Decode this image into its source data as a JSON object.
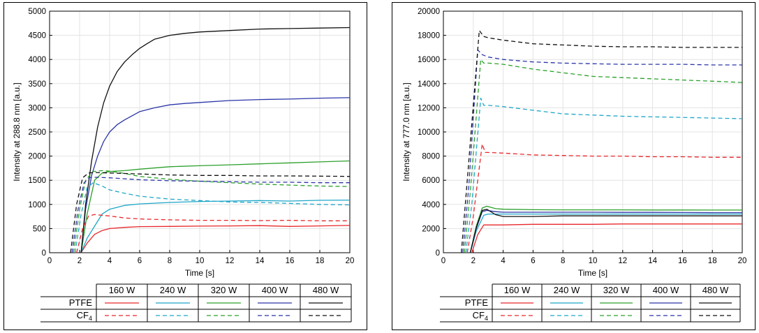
{
  "chart_data": [
    {
      "type": "line",
      "xlabel": "Time [s]",
      "ylabel": "Intensity at 288.8 nm [a.u.]",
      "xlim": [
        0,
        20
      ],
      "ylim": [
        0,
        5000
      ],
      "xticks": [
        0,
        2,
        4,
        6,
        8,
        10,
        12,
        14,
        16,
        18,
        20
      ],
      "yticks": [
        0,
        500,
        1000,
        1500,
        2000,
        2500,
        3000,
        3500,
        4000,
        4500,
        5000
      ],
      "grid": true,
      "legend": {
        "columns": [
          "160 W",
          "240 W",
          "320 W",
          "400 W",
          "480 W"
        ],
        "rows": [
          {
            "label": "PTFE",
            "sub": "",
            "style": "solid"
          },
          {
            "label": "CF",
            "sub": "4",
            "style": "dashed"
          }
        ]
      },
      "series": [
        {
          "power": "160 W",
          "material": "PTFE",
          "color": "#e8282c",
          "dash": false,
          "x": [
            2.1,
            2.5,
            3,
            3.5,
            4,
            5,
            6,
            8,
            10,
            12,
            14,
            16,
            18,
            20
          ],
          "y": [
            0,
            200,
            380,
            460,
            500,
            525,
            540,
            545,
            550,
            555,
            560,
            545,
            555,
            565
          ]
        },
        {
          "power": "240 W",
          "material": "PTFE",
          "color": "#1fa6c8",
          "dash": false,
          "x": [
            2.1,
            2.5,
            3,
            3.5,
            4,
            5,
            6,
            8,
            10,
            12,
            14,
            16,
            18,
            20
          ],
          "y": [
            0,
            300,
            550,
            800,
            900,
            980,
            1010,
            1040,
            1060,
            1070,
            1080,
            1070,
            1085,
            1090
          ]
        },
        {
          "power": "320 W",
          "material": "PTFE",
          "color": "#2ca02c",
          "dash": false,
          "x": [
            2.1,
            2.5,
            3,
            3.5,
            4,
            5,
            6,
            8,
            10,
            12,
            14,
            16,
            18,
            20
          ],
          "y": [
            0,
            800,
            1500,
            1650,
            1680,
            1700,
            1730,
            1780,
            1800,
            1820,
            1840,
            1860,
            1880,
            1900
          ]
        },
        {
          "power": "400 W",
          "material": "PTFE",
          "color": "#2b35a8",
          "dash": false,
          "x": [
            2.1,
            2.4,
            2.8,
            3.2,
            3.6,
            4,
            4.5,
            5,
            6,
            7,
            8,
            9,
            10,
            12,
            14,
            16,
            18,
            20
          ],
          "y": [
            0,
            900,
            1600,
            2000,
            2300,
            2500,
            2650,
            2750,
            2920,
            3000,
            3060,
            3090,
            3110,
            3150,
            3170,
            3180,
            3200,
            3210
          ]
        },
        {
          "power": "480 W",
          "material": "PTFE",
          "color": "#111111",
          "dash": false,
          "x": [
            2.1,
            2.4,
            2.8,
            3.2,
            3.6,
            4,
            4.5,
            5,
            5.5,
            6,
            6.5,
            7,
            8,
            9,
            10,
            12,
            14,
            16,
            18,
            20
          ],
          "y": [
            0,
            1000,
            1900,
            2600,
            3100,
            3450,
            3750,
            3950,
            4100,
            4230,
            4330,
            4420,
            4500,
            4540,
            4570,
            4600,
            4630,
            4640,
            4650,
            4660
          ]
        },
        {
          "power": "160 W",
          "material": "CF4",
          "color": "#e8282c",
          "dash": true,
          "x": [
            1.8,
            2.2,
            2.6,
            3,
            4,
            5,
            6,
            8,
            10,
            12,
            14,
            16,
            18,
            20
          ],
          "y": [
            0,
            500,
            760,
            790,
            760,
            720,
            700,
            680,
            670,
            670,
            665,
            670,
            660,
            660
          ]
        },
        {
          "power": "240 W",
          "material": "CF4",
          "color": "#1fa6c8",
          "dash": true,
          "x": [
            1.7,
            2.1,
            2.5,
            2.9,
            3.5,
            4,
            5,
            6,
            8,
            10,
            12,
            14,
            16,
            18,
            20
          ],
          "y": [
            0,
            800,
            1350,
            1450,
            1380,
            1300,
            1230,
            1170,
            1110,
            1080,
            1050,
            1040,
            1020,
            1000,
            990
          ]
        },
        {
          "power": "320 W",
          "material": "CF4",
          "color": "#2ca02c",
          "dash": true,
          "x": [
            1.6,
            2,
            2.4,
            2.9,
            3.5,
            4,
            5,
            6,
            8,
            10,
            12,
            14,
            16,
            18,
            20
          ],
          "y": [
            0,
            900,
            1500,
            1680,
            1700,
            1690,
            1640,
            1580,
            1520,
            1480,
            1450,
            1420,
            1400,
            1380,
            1370
          ]
        },
        {
          "power": "400 W",
          "material": "CF4",
          "color": "#2b35a8",
          "dash": true,
          "x": [
            1.5,
            1.9,
            2.3,
            2.7,
            3.2,
            4,
            5,
            6,
            8,
            10,
            12,
            14,
            16,
            18,
            20
          ],
          "y": [
            0,
            900,
            1450,
            1560,
            1560,
            1550,
            1530,
            1510,
            1490,
            1480,
            1470,
            1460,
            1460,
            1450,
            1450
          ]
        },
        {
          "power": "480 W",
          "material": "CF4",
          "color": "#111111",
          "dash": true,
          "x": [
            1.4,
            1.8,
            2.2,
            2.6,
            3,
            4,
            5,
            6,
            8,
            10,
            12,
            14,
            16,
            18,
            20
          ],
          "y": [
            0,
            1000,
            1550,
            1650,
            1660,
            1650,
            1640,
            1630,
            1610,
            1600,
            1600,
            1590,
            1590,
            1585,
            1580
          ]
        }
      ]
    },
    {
      "type": "line",
      "xlabel": "Time [s]",
      "ylabel": "Intensity at 777.0 nm [a.u.]",
      "xlim": [
        0,
        20
      ],
      "ylim": [
        0,
        20000
      ],
      "xticks": [
        0,
        2,
        4,
        6,
        8,
        10,
        12,
        14,
        16,
        18,
        20
      ],
      "yticks": [
        0,
        2000,
        4000,
        6000,
        8000,
        10000,
        12000,
        14000,
        16000,
        18000,
        20000
      ],
      "grid": true,
      "legend": {
        "columns": [
          "160 W",
          "240 W",
          "320 W",
          "400 W",
          "480 W"
        ],
        "rows": [
          {
            "label": "PTFE",
            "sub": "",
            "style": "solid"
          },
          {
            "label": "CF",
            "sub": "4",
            "style": "dashed"
          }
        ]
      },
      "series": [
        {
          "power": "160 W",
          "material": "PTFE",
          "color": "#e8282c",
          "dash": false,
          "x": [
            1.9,
            2.3,
            2.7,
            3,
            4,
            6,
            8,
            10,
            12,
            14,
            16,
            18,
            20
          ],
          "y": [
            0,
            1500,
            2300,
            2300,
            2300,
            2350,
            2350,
            2350,
            2380,
            2380,
            2380,
            2380,
            2380
          ]
        },
        {
          "power": "240 W",
          "material": "PTFE",
          "color": "#1fa6c8",
          "dash": false,
          "x": [
            1.8,
            2.2,
            2.7,
            3,
            4,
            6,
            8,
            10,
            12,
            14,
            16,
            18,
            20
          ],
          "y": [
            0,
            1800,
            3100,
            3200,
            3200,
            3200,
            3200,
            3200,
            3200,
            3200,
            3200,
            3200,
            3200
          ]
        },
        {
          "power": "320 W",
          "material": "PTFE",
          "color": "#2ca02c",
          "dash": false,
          "x": [
            1.8,
            2.2,
            2.6,
            2.9,
            3.5,
            4,
            6,
            8,
            10,
            12,
            14,
            16,
            18,
            20
          ],
          "y": [
            0,
            2200,
            3700,
            3850,
            3650,
            3600,
            3560,
            3550,
            3550,
            3550,
            3540,
            3540,
            3530,
            3530
          ]
        },
        {
          "power": "400 W",
          "material": "PTFE",
          "color": "#2b35a8",
          "dash": false,
          "x": [
            1.8,
            2.2,
            2.6,
            2.9,
            3.5,
            4,
            6,
            8,
            10,
            12,
            14,
            16,
            18,
            20
          ],
          "y": [
            0,
            2000,
            3400,
            3500,
            3400,
            3350,
            3350,
            3350,
            3350,
            3340,
            3340,
            3330,
            3320,
            3320
          ]
        },
        {
          "power": "480 W",
          "material": "PTFE",
          "color": "#111111",
          "dash": false,
          "x": [
            1.8,
            2.2,
            2.6,
            2.9,
            3.5,
            4,
            6,
            8,
            10,
            12,
            14,
            16,
            18,
            20
          ],
          "y": [
            0,
            2100,
            3500,
            3600,
            3150,
            3000,
            3000,
            3050,
            3050,
            3050,
            3050,
            3050,
            3050,
            3050
          ]
        },
        {
          "power": "160 W",
          "material": "CF4",
          "color": "#e8282c",
          "dash": true,
          "x": [
            1.6,
            2,
            2.6,
            2.8,
            3,
            4,
            6,
            8,
            10,
            12,
            14,
            16,
            18,
            20
          ],
          "y": [
            0,
            3000,
            9000,
            8300,
            8300,
            8250,
            8100,
            8050,
            8000,
            8000,
            7950,
            7950,
            7900,
            7900
          ]
        },
        {
          "power": "240 W",
          "material": "CF4",
          "color": "#1fa6c8",
          "dash": true,
          "x": [
            1.5,
            1.9,
            2.5,
            2.7,
            3,
            4,
            6,
            8,
            10,
            12,
            14,
            16,
            18,
            20
          ],
          "y": [
            0,
            4000,
            12800,
            12200,
            12200,
            12100,
            11800,
            11500,
            11400,
            11300,
            11250,
            11200,
            11150,
            11100
          ]
        },
        {
          "power": "320 W",
          "material": "CF4",
          "color": "#2ca02c",
          "dash": true,
          "x": [
            1.4,
            1.8,
            2.5,
            2.7,
            3,
            4,
            6,
            8,
            10,
            12,
            14,
            16,
            18,
            20
          ],
          "y": [
            0,
            5000,
            16000,
            15700,
            15700,
            15600,
            15200,
            14900,
            14600,
            14500,
            14400,
            14300,
            14200,
            14100
          ]
        },
        {
          "power": "400 W",
          "material": "CF4",
          "color": "#2b35a8",
          "dash": true,
          "x": [
            1.3,
            1.7,
            2.3,
            2.6,
            3,
            4,
            6,
            8,
            10,
            12,
            14,
            16,
            18,
            20
          ],
          "y": [
            0,
            5500,
            16800,
            16400,
            16200,
            16000,
            15800,
            15700,
            15650,
            15600,
            15600,
            15600,
            15550,
            15550
          ]
        },
        {
          "power": "480 W",
          "material": "CF4",
          "color": "#111111",
          "dash": true,
          "x": [
            1.2,
            1.6,
            2.4,
            2.7,
            3,
            4,
            6,
            8,
            10,
            12,
            14,
            16,
            18,
            20
          ],
          "y": [
            0,
            6000,
            18400,
            17900,
            17800,
            17600,
            17300,
            17200,
            17100,
            17050,
            17050,
            17000,
            17000,
            17000
          ]
        }
      ]
    }
  ]
}
